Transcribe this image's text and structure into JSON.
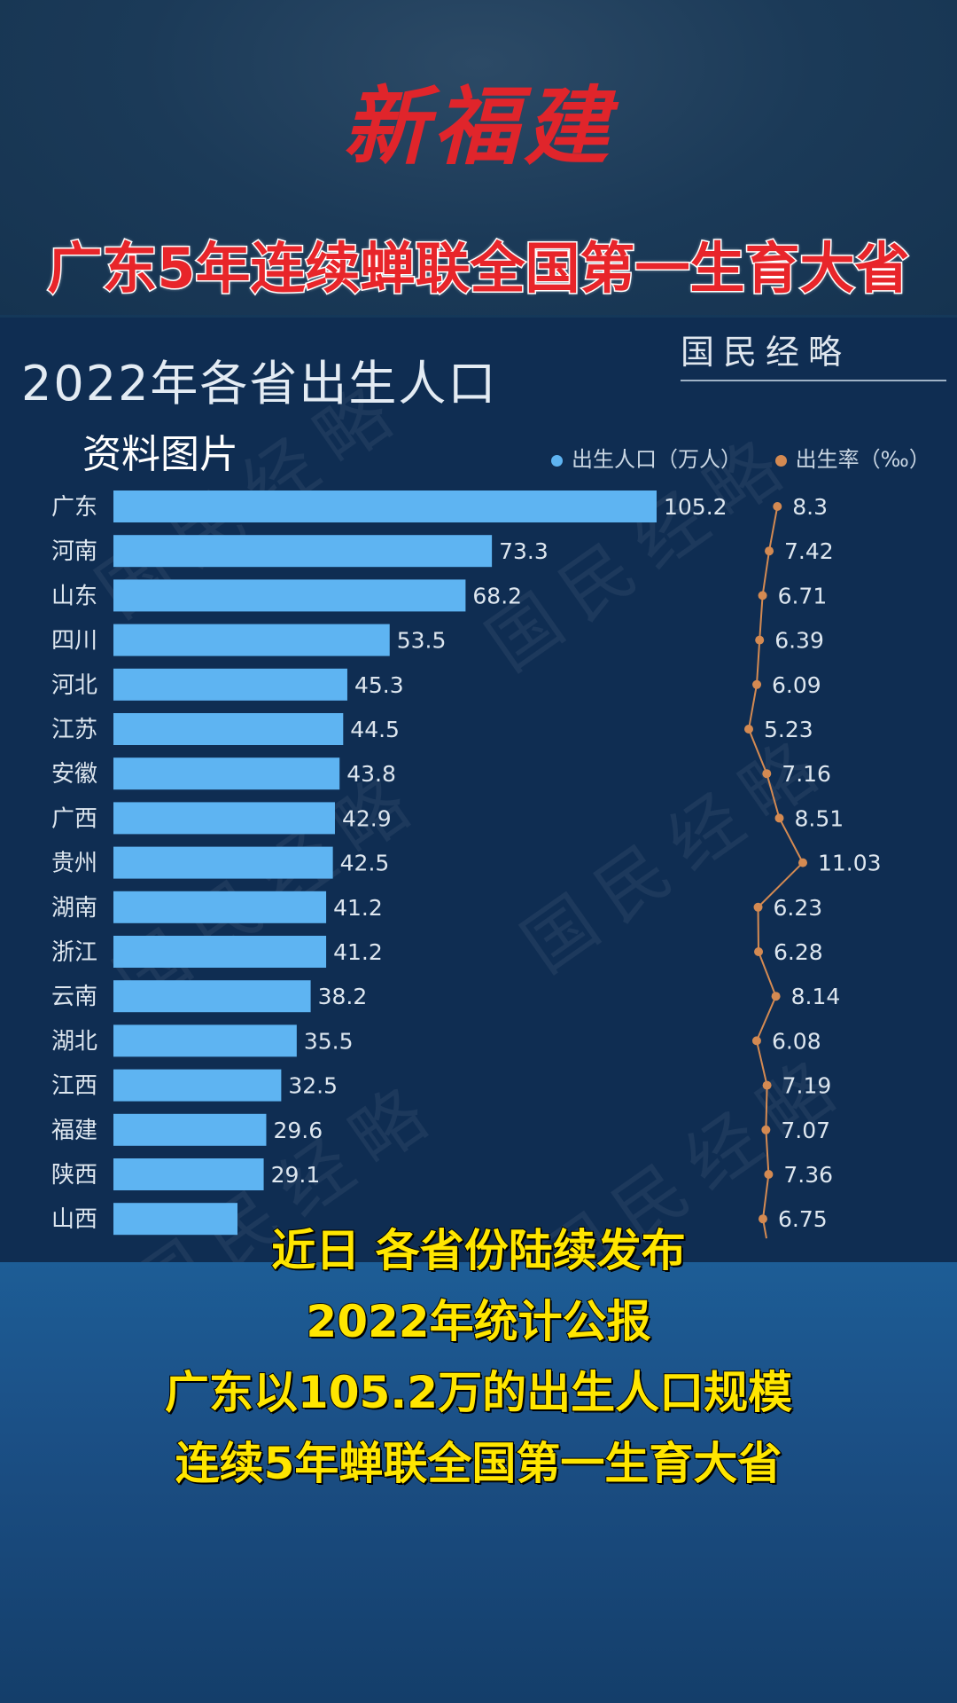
{
  "logo_text": "新福建",
  "headline": "广东5年连续蝉联全国第一生育大省",
  "stamp": "国民经略",
  "watermark": "国民经略",
  "source_note": "资料图片",
  "caption": [
    "近日 各省份陆续发布",
    "2022年统计公报",
    "广东以105.2万的出生人口规模",
    "连续5年蝉联全国第一生育大省"
  ],
  "colors": {
    "bar": "#5eb4f2",
    "line": "#d48a52",
    "headline_red": "#e8252a",
    "caption_yellow": "#ffe600"
  },
  "chart_data": {
    "type": "bar",
    "orientation": "horizontal",
    "title": "2022年各省出生人口",
    "categories": [
      "广东",
      "河南",
      "山东",
      "四川",
      "河北",
      "江苏",
      "安徽",
      "广西",
      "贵州",
      "湖南",
      "浙江",
      "云南",
      "湖北",
      "江西",
      "福建",
      "陕西",
      "山西"
    ],
    "series": [
      {
        "name": "出生人口（万人）",
        "type": "bar",
        "values": [
          105.2,
          73.3,
          68.2,
          53.5,
          45.3,
          44.5,
          43.8,
          42.9,
          42.5,
          41.2,
          41.2,
          38.2,
          35.5,
          32.5,
          29.6,
          29.1,
          null
        ]
      },
      {
        "name": "出生率（‰）",
        "type": "line",
        "values": [
          8.3,
          7.42,
          6.71,
          6.39,
          6.09,
          5.23,
          7.16,
          8.51,
          11.03,
          6.23,
          6.28,
          8.14,
          6.08,
          7.19,
          7.07,
          7.36,
          6.75
        ]
      }
    ],
    "legend_position": "top-right"
  }
}
